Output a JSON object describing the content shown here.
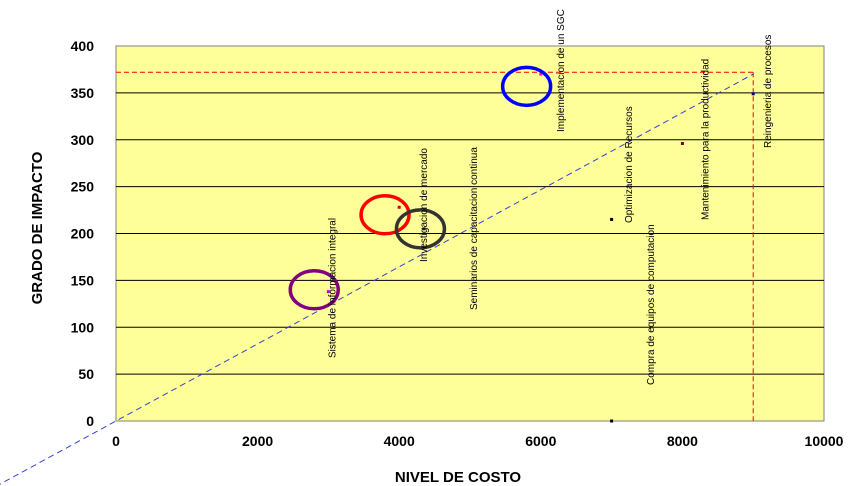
{
  "chart_data": {
    "type": "scatter",
    "xlabel": "NIVEL DE COSTO",
    "ylabel": "GRADO DE IMPACTO",
    "xlim": [
      0,
      10000
    ],
    "ylim": [
      0,
      400
    ],
    "x_ticks": [
      "0",
      "2000",
      "4000",
      "6000",
      "8000",
      "10000"
    ],
    "y_ticks": [
      "0",
      "50",
      "100",
      "150",
      "200",
      "250",
      "300",
      "350",
      "400"
    ],
    "grid": "horizontal",
    "background_color": "#ffff99",
    "points": [
      {
        "label": "Sistema de informacion integral",
        "x": 3000,
        "y": 138,
        "color": "#cc00cc"
      },
      {
        "label": "Investigacion de mercado",
        "x": 4000,
        "y": 228,
        "color": "#cc0000"
      },
      {
        "label": "Seminarios de capacitacion continua",
        "x": 4350,
        "y": 205,
        "color": "#333333"
      },
      {
        "label": "Implementacion de un SGC",
        "x": 6000,
        "y": 370,
        "color": "#ff00ff"
      },
      {
        "label": "Compra de equipos de computacion",
        "x": 7000,
        "y": 0,
        "color": "#000000"
      },
      {
        "label": "Optimizacion de Recursos",
        "x": 7000,
        "y": 215,
        "color": "#000000"
      },
      {
        "label": "Mantenimiento para la productividad",
        "x": 8000,
        "y": 296,
        "color": "#800000"
      },
      {
        "label": "Reingenieria de procesos",
        "x": 9000,
        "y": 349,
        "color": "#000080"
      }
    ],
    "circles": [
      {
        "x": 2800,
        "y": 140,
        "color": "#800080"
      },
      {
        "x": 3800,
        "y": 220,
        "color": "#ff0000"
      },
      {
        "x": 4300,
        "y": 205,
        "color": "#333333"
      },
      {
        "x": 5800,
        "y": 357,
        "color": "#0000ff"
      }
    ],
    "trend_line": {
      "from": [
        0,
        0
      ],
      "to": [
        9000,
        370
      ],
      "color": "#3344cc"
    },
    "reference_lines": {
      "x": 9000,
      "y": 372,
      "color": "#ff0000"
    }
  }
}
